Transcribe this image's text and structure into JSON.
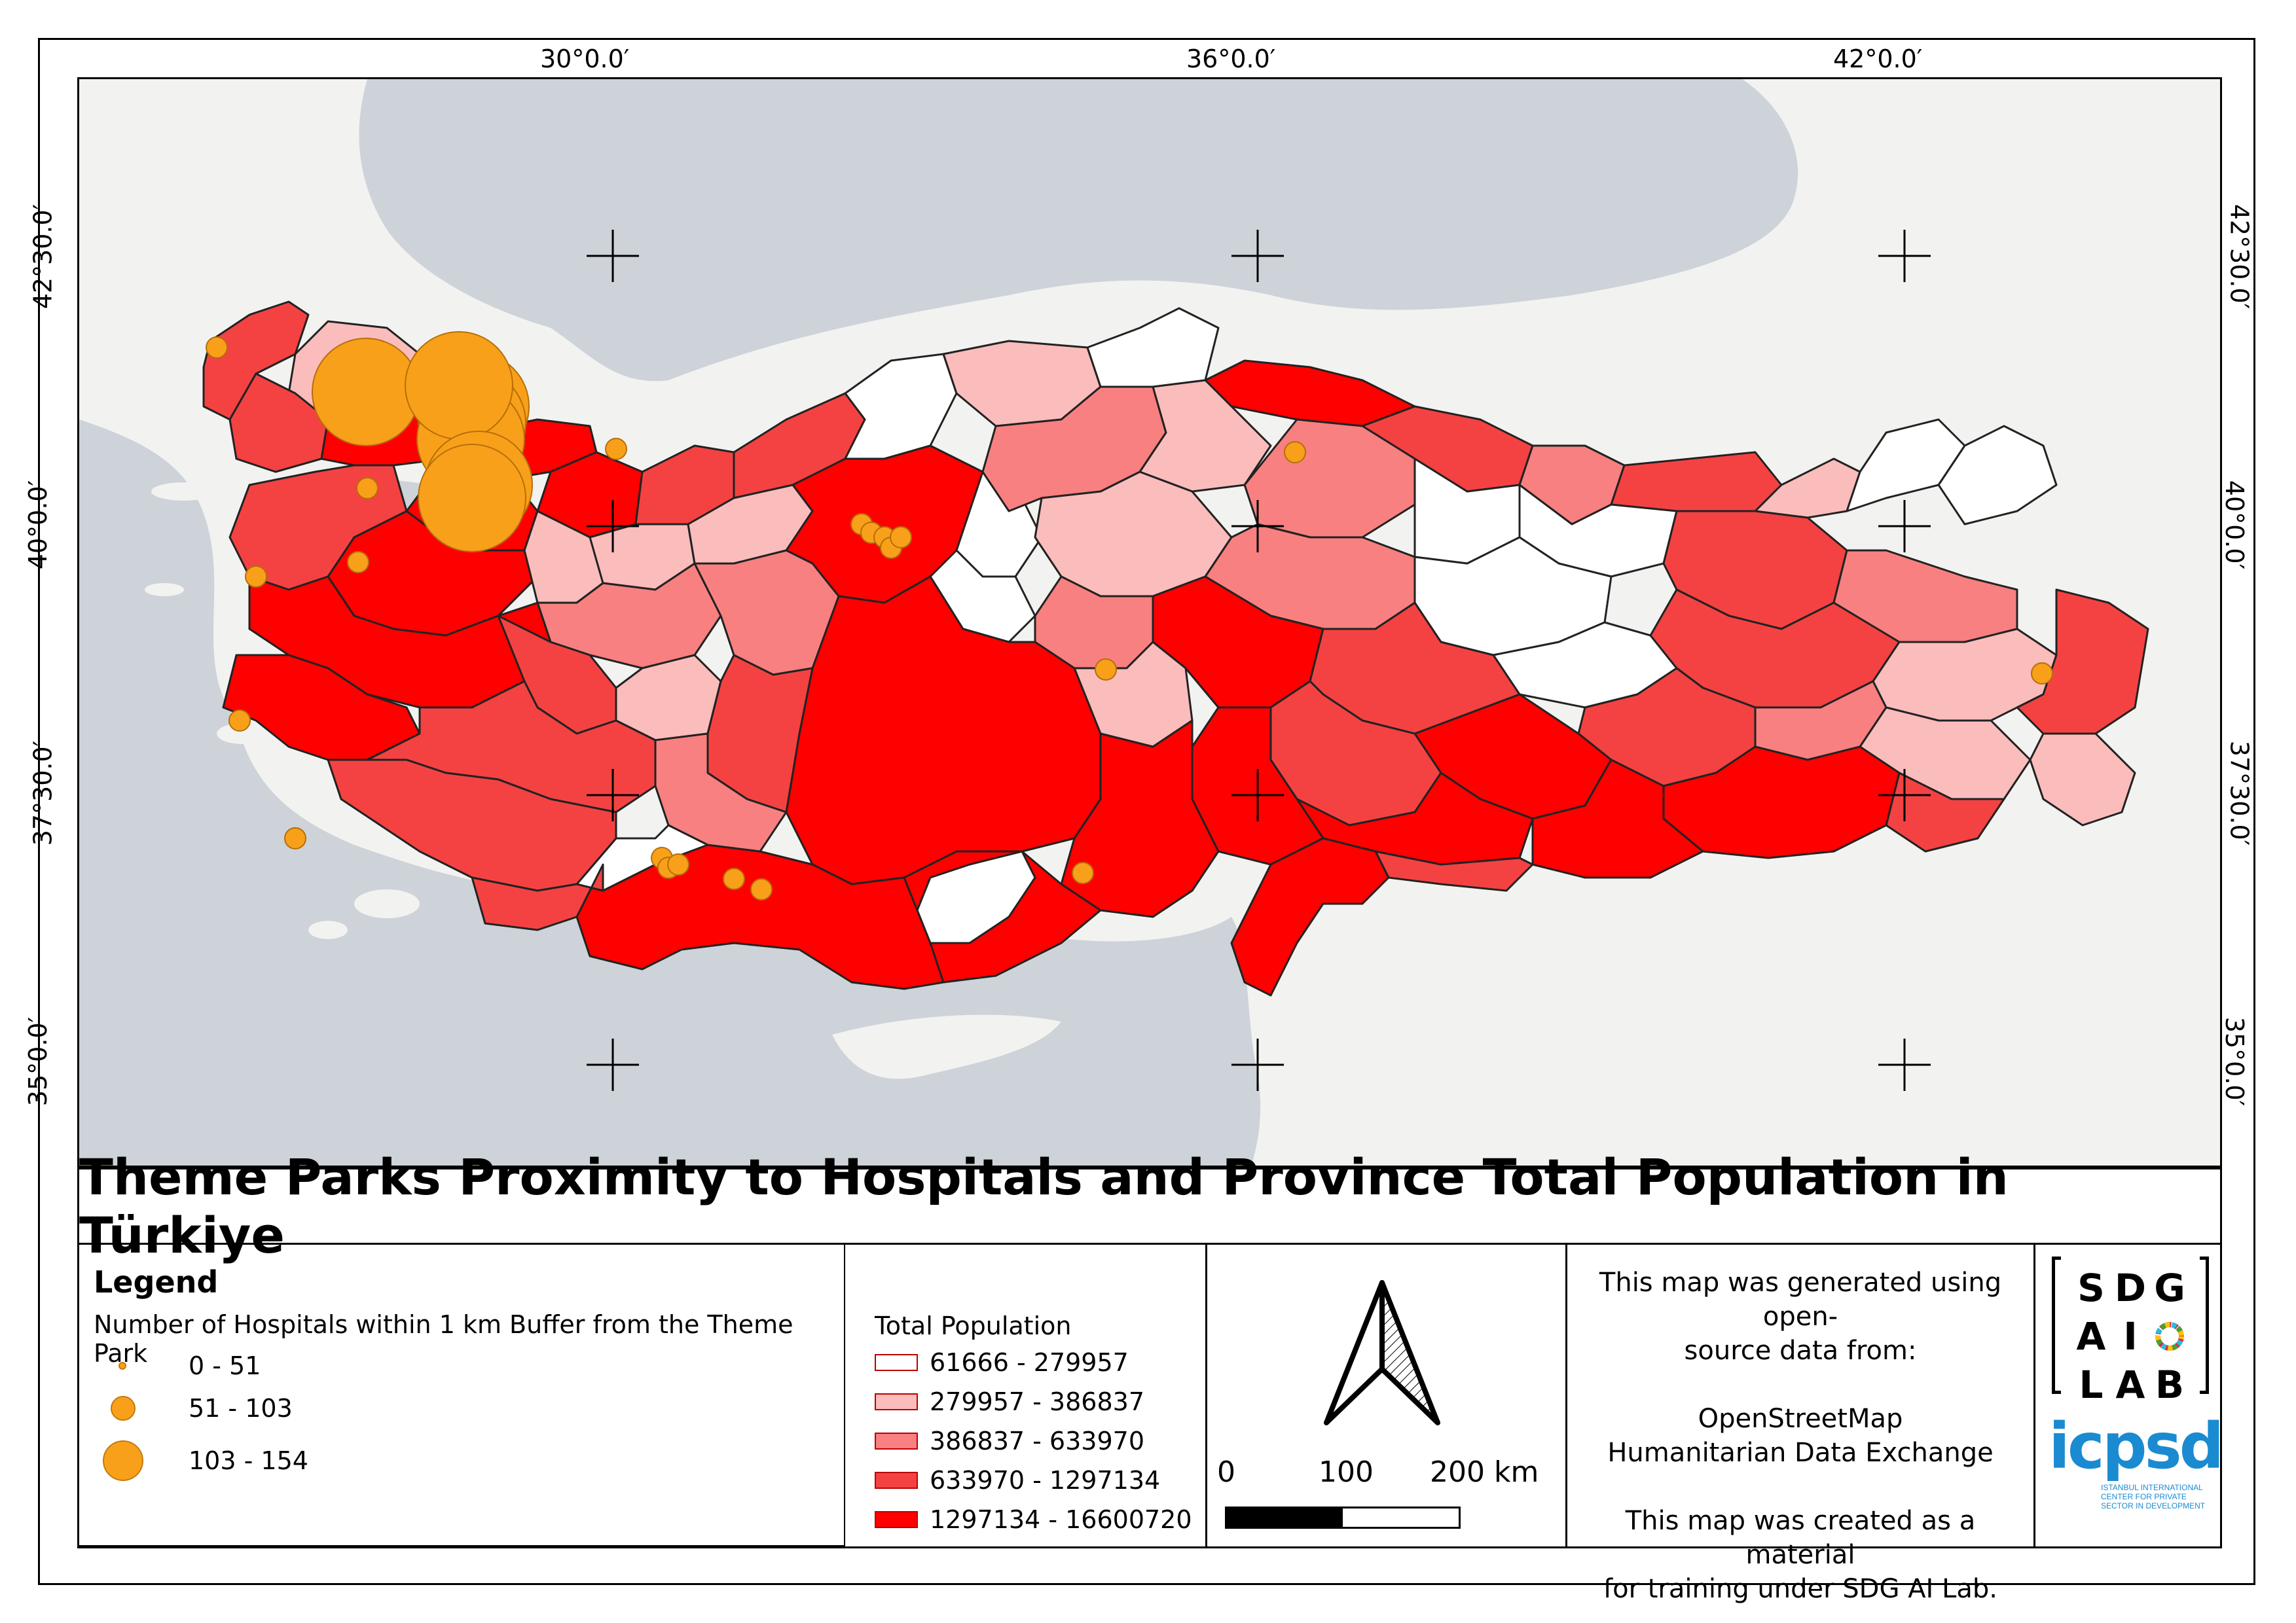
{
  "title": "Theme Parks Proximity to Hospitals and Province Total Population in Türkiye",
  "grid_labels": {
    "lon": [
      "30°0.0′",
      "36°0.0′",
      "42°0.0′"
    ],
    "lat_left": [
      "42°30.0′",
      "40°0.0′",
      "37°30.0′",
      "35°0.0′"
    ],
    "lat_right": [
      "42°30.0′",
      "40°0.0′",
      "37°30.0′",
      "35°0.0′"
    ]
  },
  "legend": {
    "heading": "Legend",
    "bubble_title": "Number of Hospitals within 1 km Buffer from the Theme Park",
    "bubbles": [
      {
        "label": "0 - 51"
      },
      {
        "label": "51 - 103"
      },
      {
        "label": "103 - 154"
      }
    ],
    "population_title": "Total Population",
    "population_classes": [
      {
        "label": "61666 - 279957",
        "color": "#ffffff"
      },
      {
        "label": "279957 - 386837",
        "color": "#fbbcbc"
      },
      {
        "label": "386837 - 633970",
        "color": "#f88080"
      },
      {
        "label": "633970 - 1297134",
        "color": "#f44242"
      },
      {
        "label": "1297134 - 16600720",
        "color": "#ff0000"
      }
    ]
  },
  "scale": {
    "labels": [
      "0",
      "100",
      "200 km"
    ]
  },
  "credits": {
    "line1": "This map was generated using open-",
    "line2": "source data from:",
    "line3": "OpenStreetMap",
    "line4": "Humanitarian Data Exchange",
    "line5": "This map was created as a material",
    "line6": "for training under SDG AI Lab."
  },
  "logo": {
    "sdg_letters": [
      "S",
      "D",
      "G",
      "A",
      "I",
      "",
      "L",
      "A",
      "B"
    ],
    "icpsd": "icpsd",
    "icpsd_sub": "ISTANBUL INTERNATIONAL CENTER FOR PRIVATE SECTOR IN DEVELOPMENT"
  },
  "colors": {
    "sea": "#cdd3d8",
    "land": "#f2f2f0",
    "park": "#f9a01b"
  }
}
